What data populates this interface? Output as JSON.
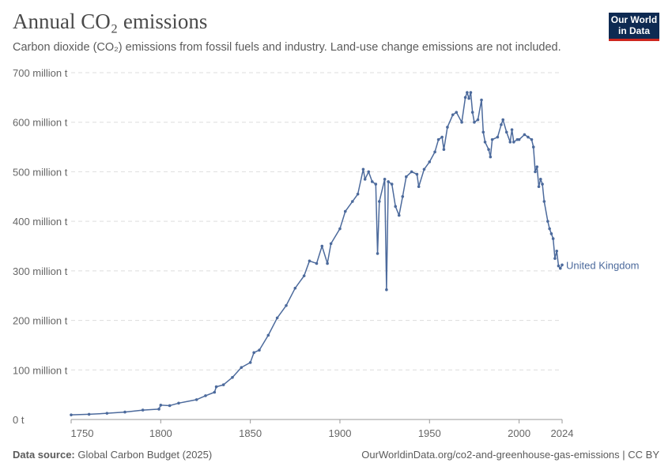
{
  "header": {
    "title": "Annual CO₂ emissions",
    "subtitle": "Carbon dioxide (CO₂) emissions from fossil fuels and industry. Land-use change emissions are not included.",
    "logo": "Our World in Data"
  },
  "footer": {
    "source_label": "Data source:",
    "source": "Global Carbon Budget (2025)",
    "url": "OurWorldinData.org/co2-and-greenhouse-gas-emissions | CC BY"
  },
  "chart_data": {
    "type": "line",
    "title": "Annual CO₂ emissions",
    "xlabel": "",
    "ylabel": "",
    "xlim": [
      1750,
      2024
    ],
    "ylim": [
      0,
      700
    ],
    "x_ticks": [
      1750,
      1800,
      1850,
      1900,
      1950,
      2000,
      2024
    ],
    "y_ticks": [
      {
        "v": 0,
        "label": "0 t"
      },
      {
        "v": 100,
        "label": "100 million t"
      },
      {
        "v": 200,
        "label": "200 million t"
      },
      {
        "v": 300,
        "label": "300 million t"
      },
      {
        "v": 400,
        "label": "400 million t"
      },
      {
        "v": 500,
        "label": "500 million t"
      },
      {
        "v": 600,
        "label": "600 million t"
      },
      {
        "v": 700,
        "label": "700 million t"
      }
    ],
    "grid": true,
    "color": "#4c6a9c",
    "series": [
      {
        "name": "United Kingdom",
        "unit": "million t",
        "x": [
          1750,
          1760,
          1770,
          1780,
          1790,
          1799,
          1800,
          1805,
          1810,
          1820,
          1825,
          1830,
          1831,
          1835,
          1840,
          1845,
          1850,
          1852,
          1855,
          1860,
          1865,
          1870,
          1875,
          1880,
          1883,
          1887,
          1890,
          1893,
          1895,
          1900,
          1903,
          1907,
          1910,
          1913,
          1914,
          1916,
          1918,
          1920,
          1921,
          1922,
          1925,
          1926,
          1927,
          1929,
          1931,
          1933,
          1935,
          1937,
          1940,
          1943,
          1944,
          1947,
          1950,
          1953,
          1955,
          1957,
          1958,
          1960,
          1963,
          1965,
          1968,
          1970,
          1971,
          1972,
          1973,
          1974,
          1975,
          1977,
          1979,
          1980,
          1981,
          1983,
          1984,
          1985,
          1988,
          1990,
          1991,
          1993,
          1995,
          1996,
          1997,
          1999,
          2000,
          2003,
          2005,
          2007,
          2008,
          2009,
          2010,
          2011,
          2012,
          2013,
          2014,
          2016,
          2017,
          2018,
          2019,
          2020,
          2021,
          2022,
          2023,
          2024
        ],
        "y": [
          9.3,
          10.5,
          12.5,
          15,
          19,
          21,
          29,
          28,
          33,
          40,
          48,
          55,
          66,
          70,
          85,
          105,
          115,
          135,
          140,
          170,
          205,
          230,
          265,
          290,
          320,
          315,
          350,
          315,
          355,
          385,
          420,
          440,
          455,
          505,
          485,
          500,
          480,
          475,
          335,
          440,
          485,
          262,
          480,
          475,
          430,
          412,
          450,
          490,
          500,
          495,
          470,
          505,
          520,
          540,
          565,
          570,
          545,
          590,
          615,
          620,
          600,
          650,
          660,
          648,
          660,
          620,
          600,
          605,
          645,
          580,
          560,
          545,
          530,
          565,
          570,
          595,
          605,
          580,
          560,
          585,
          560,
          565,
          565,
          575,
          570,
          565,
          550,
          500,
          510,
          470,
          485,
          475,
          440,
          400,
          385,
          375,
          365,
          325,
          340,
          310,
          305,
          312
        ]
      }
    ]
  }
}
